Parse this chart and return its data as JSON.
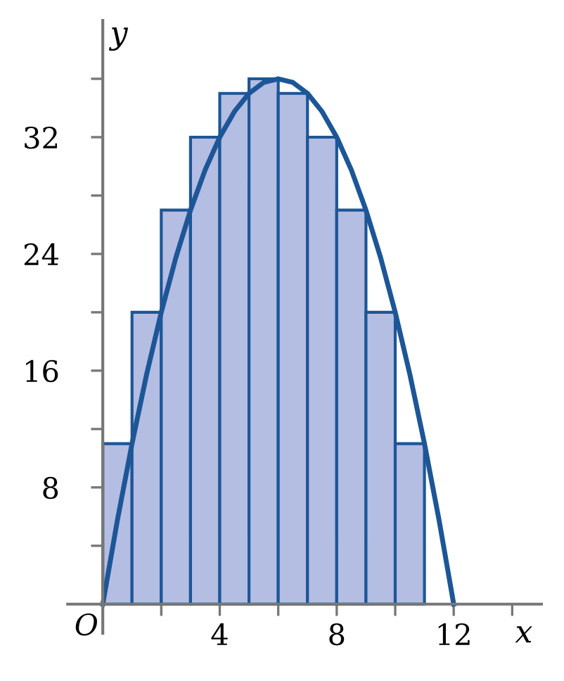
{
  "chart_data": {
    "type": "histogram",
    "xlabel": "x",
    "ylabel": "y",
    "annotations": [
      "O"
    ],
    "bins": [
      0,
      1,
      2,
      3,
      4,
      5,
      6,
      7,
      8,
      9,
      10,
      11
    ],
    "values": [
      11,
      20,
      27,
      32,
      35,
      36,
      35,
      32,
      27,
      20,
      11
    ],
    "color": "#b4bde2",
    "series": [
      {
        "type": "line",
        "color": "#1d5697",
        "x": [
          0,
          0.5,
          1,
          1.5,
          2,
          2.5,
          3,
          3.5,
          4,
          4.5,
          5,
          5.5,
          6,
          6.5,
          7,
          7.5,
          8,
          8.5,
          9,
          9.5,
          10,
          10.5,
          11,
          11.5,
          12
        ],
        "values": [
          0,
          5.75,
          11,
          15.75,
          20,
          23.75,
          27,
          29.75,
          32,
          33.75,
          35,
          35.75,
          36,
          35.75,
          35,
          33.75,
          32,
          29.75,
          27,
          23.75,
          20,
          15.75,
          11,
          5.75,
          0
        ]
      }
    ],
    "xlim": [
      -1.2,
      15
    ],
    "ylim": [
      -2,
      40
    ],
    "xticks": [
      {
        "value": 2,
        "label": null
      },
      4,
      {
        "value": 6,
        "label": null
      },
      8,
      {
        "value": 10,
        "label": null
      },
      12,
      {
        "value": 14,
        "label": null
      }
    ],
    "yticks": [
      {
        "value": 4,
        "label": null
      },
      8,
      {
        "value": 12,
        "label": null
      },
      16,
      {
        "value": 20,
        "label": null
      },
      24,
      {
        "value": 28,
        "label": null
      },
      32,
      {
        "value": 36,
        "label": null
      }
    ],
    "grid": false
  }
}
